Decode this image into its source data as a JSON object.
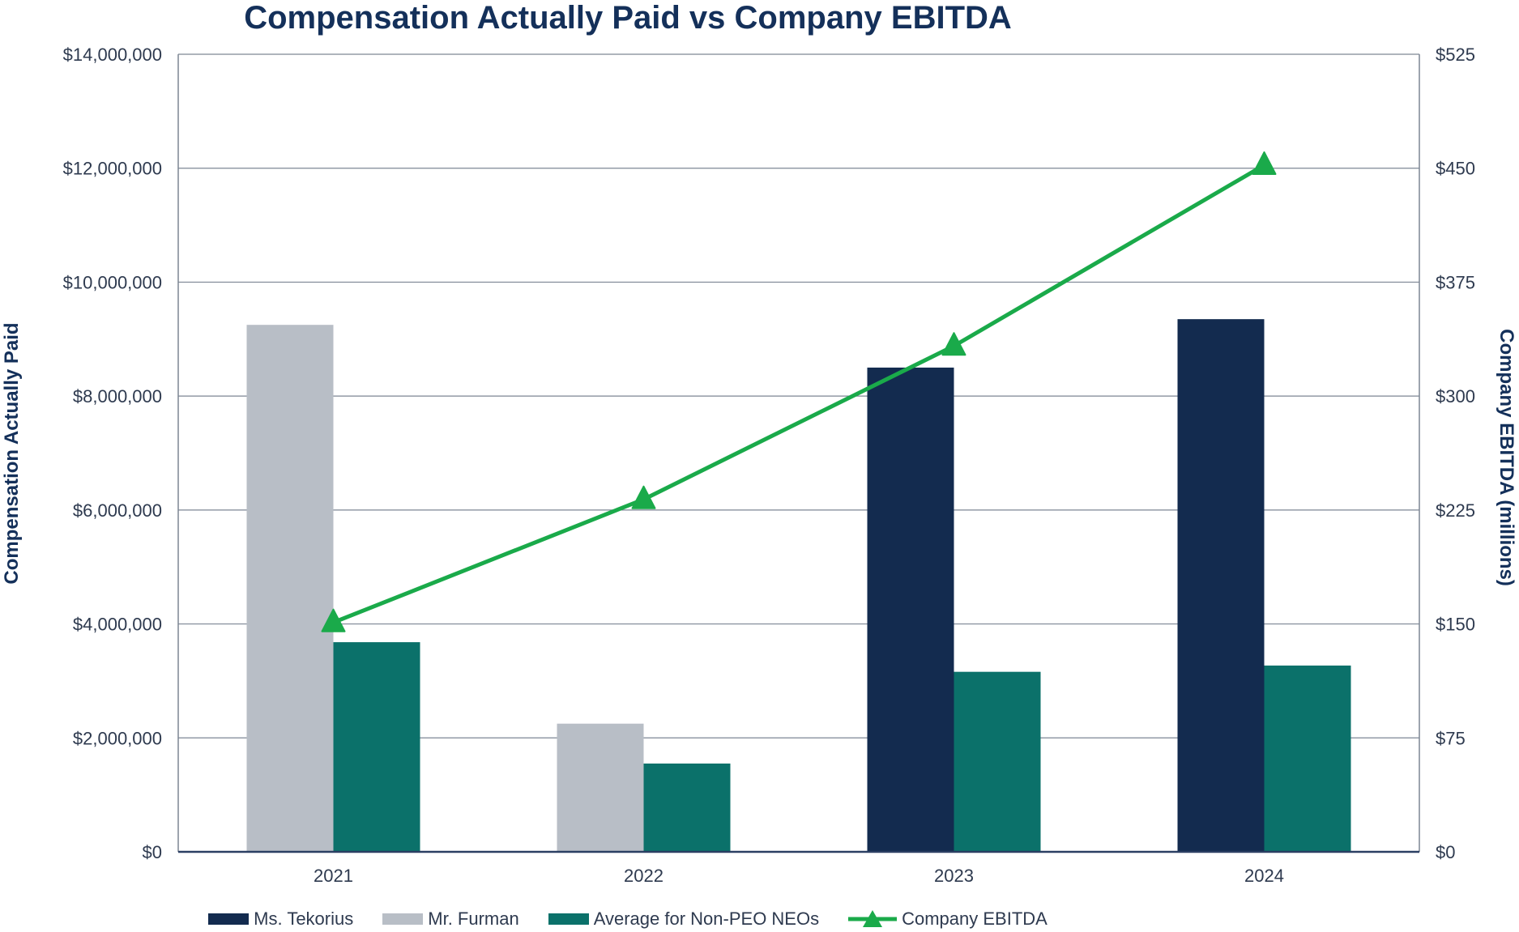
{
  "chart_data": {
    "type": "bar",
    "title": "Compensation Actually Paid vs Company EBITDA",
    "categories": [
      "2021",
      "2022",
      "2023",
      "2024"
    ],
    "ylabel": "Compensation Actually Paid",
    "y2label": "Company EBITDA (millions)",
    "ylim": [
      0,
      14000000
    ],
    "y2lim": [
      0,
      525
    ],
    "y_ticks": [
      "$0",
      "$2,000,000",
      "$4,000,000",
      "$6,000,000",
      "$8,000,000",
      "$10,000,000",
      "$12,000,000",
      "$14,000,000"
    ],
    "y2_ticks": [
      "$0",
      "$75",
      "$150",
      "$225",
      "$300",
      "$375",
      "$450",
      "$525"
    ],
    "grid": true,
    "legend_position": "bottom",
    "series": [
      {
        "name": "Ms. Tekorius",
        "kind": "bar",
        "color": "#132b4f",
        "values": [
          null,
          null,
          8500000,
          9350000
        ]
      },
      {
        "name": "Mr. Furman",
        "kind": "bar",
        "color": "#b8bec6",
        "values": [
          9250000,
          2250000,
          null,
          null
        ]
      },
      {
        "name": "Average for Non-PEO NEOs",
        "kind": "bar",
        "color": "#0b716a",
        "values": [
          3680000,
          1550000,
          3160000,
          3270000
        ]
      },
      {
        "name": "Company EBITDA",
        "kind": "line",
        "axis": "right",
        "color": "#1aaa4a",
        "marker": "triangle",
        "values": [
          151,
          232,
          333,
          452
        ]
      }
    ]
  }
}
